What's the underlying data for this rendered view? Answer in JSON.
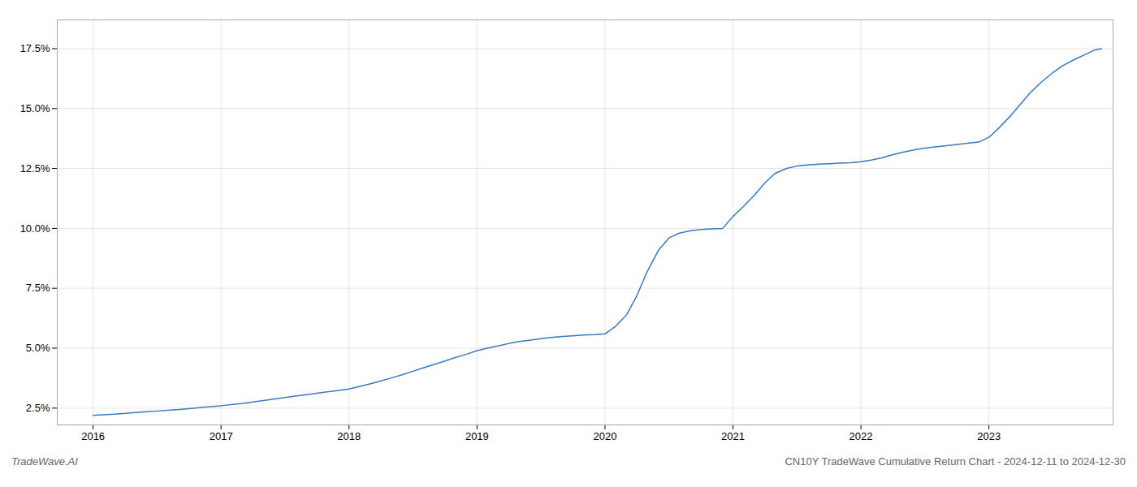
{
  "chart_data": {
    "type": "line",
    "title": "CN10Y TradeWave Cumulative Return Chart - 2024-12-11 to 2024-12-30",
    "annotations": [
      "TradeWave.AI"
    ],
    "color": "#3a7abf",
    "grid": true,
    "xlim": [
      2015.72,
      2023.97
    ],
    "xticks": [
      2016,
      2017,
      2018,
      2019,
      2020,
      2021,
      2022,
      2023
    ],
    "ylim": [
      0.018,
      0.187
    ],
    "yticks": [
      {
        "value": 0.025,
        "label": "2.5%"
      },
      {
        "value": 0.05,
        "label": "5.0%"
      },
      {
        "value": 0.075,
        "label": "7.5%"
      },
      {
        "value": 0.1,
        "label": "10.0%"
      },
      {
        "value": 0.125,
        "label": "12.5%"
      },
      {
        "value": 0.15,
        "label": "15.0%"
      },
      {
        "value": 0.175,
        "label": "17.5%"
      }
    ],
    "x": [
      2016.0,
      2016.08,
      2016.17,
      2016.25,
      2016.33,
      2016.42,
      2016.5,
      2016.58,
      2016.67,
      2016.75,
      2016.83,
      2016.92,
      2017.0,
      2017.08,
      2017.17,
      2017.25,
      2017.33,
      2017.42,
      2017.5,
      2017.58,
      2017.67,
      2017.75,
      2017.83,
      2017.92,
      2018.0,
      2018.08,
      2018.17,
      2018.25,
      2018.33,
      2018.42,
      2018.5,
      2018.58,
      2018.67,
      2018.75,
      2018.83,
      2018.92,
      2019.0,
      2019.08,
      2019.17,
      2019.25,
      2019.33,
      2019.42,
      2019.5,
      2019.58,
      2019.67,
      2019.75,
      2019.83,
      2019.92,
      2020.0,
      2020.08,
      2020.17,
      2020.25,
      2020.33,
      2020.42,
      2020.5,
      2020.58,
      2020.67,
      2020.75,
      2020.83,
      2020.92,
      2021.0,
      2021.08,
      2021.17,
      2021.25,
      2021.33,
      2021.42,
      2021.5,
      2021.58,
      2021.67,
      2021.75,
      2021.83,
      2021.92,
      2022.0,
      2022.08,
      2022.17,
      2022.25,
      2022.33,
      2022.42,
      2022.5,
      2022.58,
      2022.67,
      2022.75,
      2022.83,
      2022.92,
      2023.0,
      2023.08,
      2023.17,
      2023.25,
      2023.33,
      2023.42,
      2023.5,
      2023.58,
      2023.67,
      2023.75,
      2023.83,
      2023.88
    ],
    "values": [
      0.022,
      0.0222,
      0.0225,
      0.0228,
      0.0232,
      0.0235,
      0.0238,
      0.0241,
      0.0244,
      0.0248,
      0.0252,
      0.0256,
      0.026,
      0.0265,
      0.027,
      0.0276,
      0.0282,
      0.0288,
      0.0294,
      0.03,
      0.0306,
      0.0312,
      0.0318,
      0.0324,
      0.033,
      0.034,
      0.0352,
      0.0364,
      0.0376,
      0.039,
      0.0404,
      0.0418,
      0.0433,
      0.0447,
      0.0461,
      0.0475,
      0.049,
      0.05,
      0.051,
      0.052,
      0.0528,
      0.0534,
      0.054,
      0.0545,
      0.0549,
      0.0552,
      0.0555,
      0.0557,
      0.056,
      0.059,
      0.064,
      0.072,
      0.082,
      0.091,
      0.096,
      0.098,
      0.099,
      0.0995,
      0.0998,
      0.1,
      0.105,
      0.109,
      0.114,
      0.119,
      0.123,
      0.125,
      0.126,
      0.1265,
      0.1268,
      0.127,
      0.1272,
      0.1274,
      0.1278,
      0.1285,
      0.1295,
      0.1308,
      0.1318,
      0.1328,
      0.1335,
      0.134,
      0.1345,
      0.135,
      0.1355,
      0.136,
      0.138,
      0.142,
      0.147,
      0.152,
      0.157,
      0.1615,
      0.165,
      0.168,
      0.1705,
      0.1725,
      0.1745,
      0.175
    ]
  }
}
